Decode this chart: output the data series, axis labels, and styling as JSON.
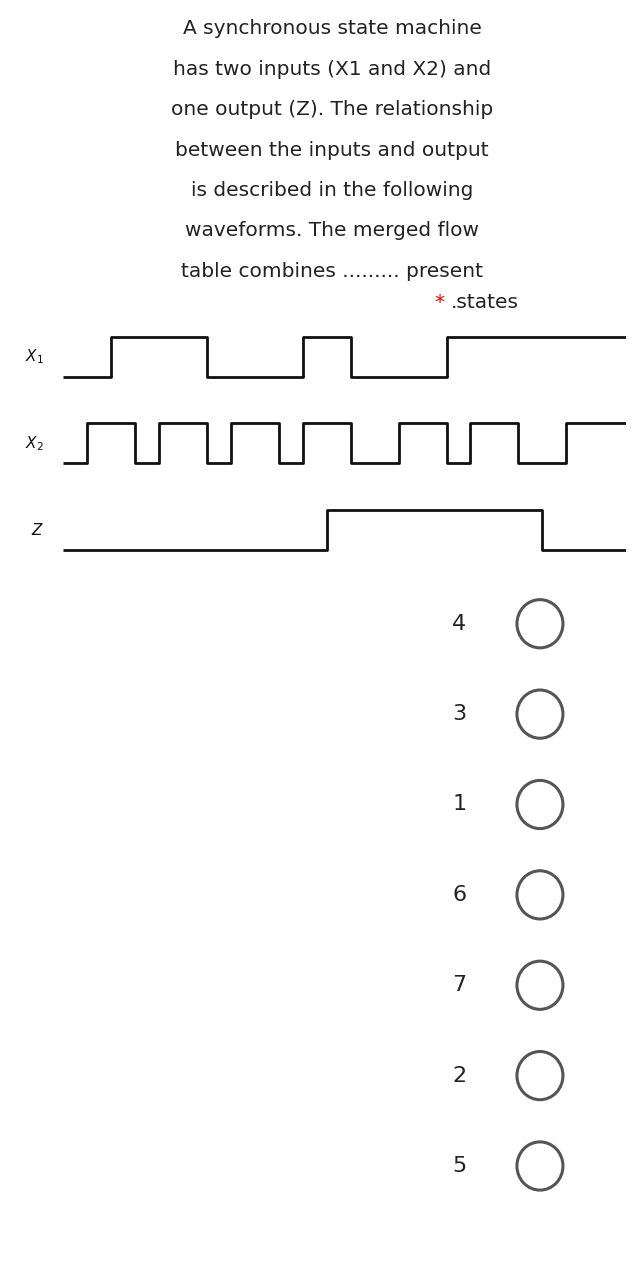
{
  "title_lines": [
    "A synchronous state machine",
    "has two inputs (X1 and X2) and",
    "one output (Z). The relationship",
    "between the inputs and output",
    "is described in the following",
    "waveforms. The merged flow",
    "table combines ......... present"
  ],
  "star_text": ".states",
  "background_color": "#ffffff",
  "text_color": "#222222",
  "star_color": "#dd0000",
  "waveform_color": "#111111",
  "waveform_lw": 2.0,
  "x1_signal": [
    0,
    0,
    1,
    1,
    1,
    1,
    0,
    0,
    0,
    0,
    1,
    1,
    0,
    0,
    0,
    0,
    1,
    1,
    1,
    1,
    1,
    1,
    1,
    1
  ],
  "x2_signal": [
    0,
    1,
    1,
    0,
    1,
    1,
    0,
    1,
    1,
    0,
    1,
    1,
    0,
    0,
    1,
    1,
    0,
    1,
    1,
    0,
    0,
    1,
    1,
    1
  ],
  "z_signal": [
    0,
    0,
    0,
    0,
    0,
    0,
    0,
    0,
    0,
    0,
    0,
    1,
    1,
    1,
    1,
    1,
    1,
    1,
    1,
    1,
    0,
    0,
    0,
    0
  ],
  "choices": [
    "4",
    "3",
    "1",
    "6",
    "7",
    "2",
    "5"
  ],
  "circle_color": "#555555",
  "title_fontsize": 14.5,
  "label_fontsize": 11,
  "choice_fontsize": 16
}
